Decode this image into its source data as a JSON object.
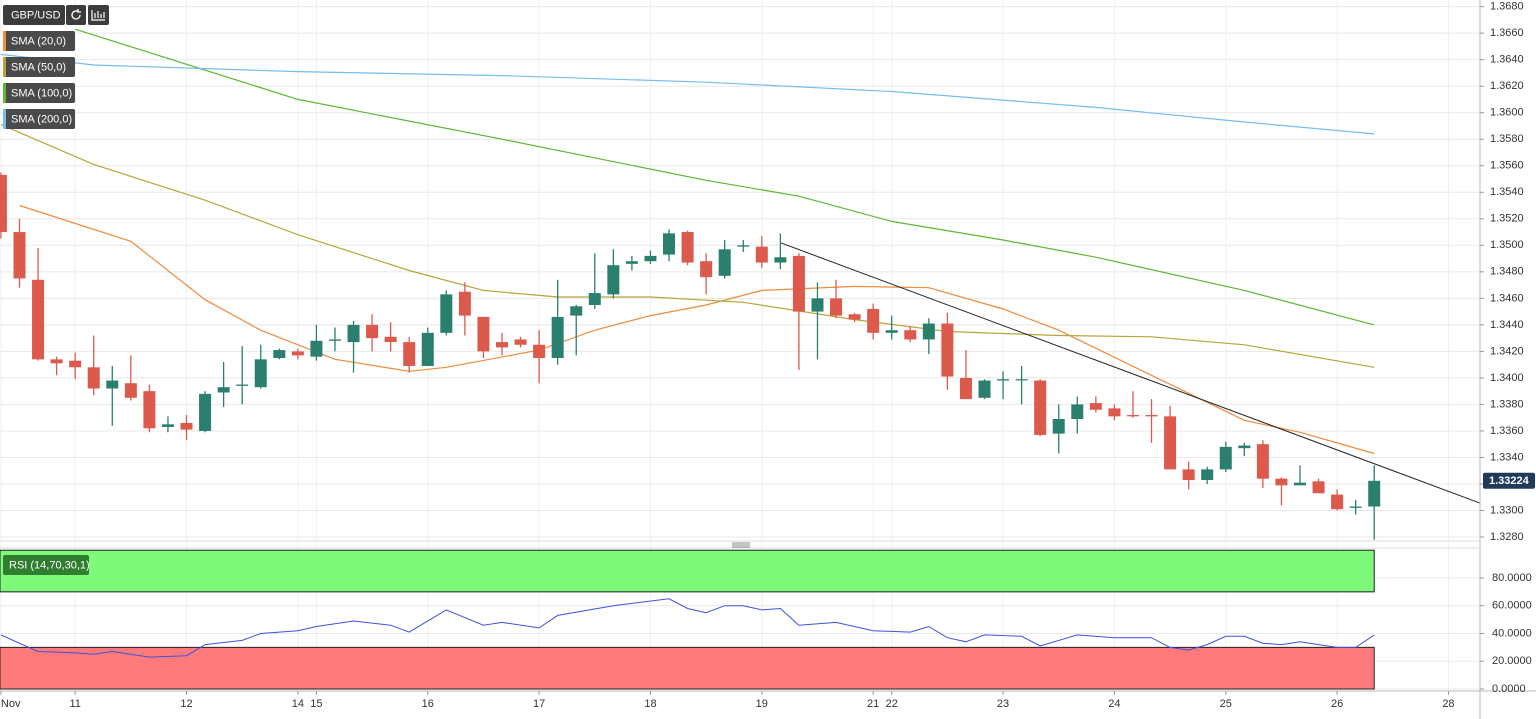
{
  "chart_data": [
    {
      "type": "candlestick",
      "title": "GBP/USD",
      "categories": [
        "Nov",
        null,
        null,
        null,
        "11",
        null,
        null,
        null,
        null,
        null,
        "12",
        null,
        null,
        null,
        null,
        null,
        "14",
        "15",
        null,
        null,
        null,
        null,
        null,
        "16",
        null,
        null,
        null,
        null,
        null,
        "17",
        null,
        null,
        null,
        null,
        null,
        "18",
        null,
        null,
        null,
        null,
        null,
        "19",
        null,
        null,
        null,
        null,
        null,
        "21",
        "22",
        null,
        null,
        null,
        null,
        null,
        "23",
        null,
        null,
        null,
        null,
        null,
        "24",
        null,
        null,
        null,
        null,
        null,
        "25",
        null,
        null,
        null,
        null,
        null,
        "26",
        null,
        null,
        null,
        null,
        null,
        "28"
      ],
      "open": [
        1.3553,
        1.351,
        1.3474,
        1.3414,
        1.3413,
        1.3408,
        1.3392,
        1.3396,
        1.339,
        1.3363,
        1.3366,
        1.336,
        1.3389,
        1.3394,
        1.3393,
        1.3415,
        1.342,
        1.3416,
        1.3428,
        1.3427,
        1.344,
        1.3431,
        1.3427,
        1.3409,
        1.3434,
        1.3465,
        1.3446,
        1.3427,
        1.3429,
        1.3425,
        1.3415,
        1.3447,
        1.3455,
        1.3463,
        1.3486,
        1.3488,
        1.3493,
        1.351,
        1.3488,
        1.3477,
        1.3499,
        1.3499,
        1.3487,
        1.3492,
        1.345,
        1.346,
        1.3448,
        1.3452,
        1.3434,
        1.3436,
        1.3429,
        1.3441,
        1.34,
        1.3385,
        1.3398,
        1.3399,
        1.3398,
        1.3358,
        1.3369,
        1.3381,
        1.3377,
        1.3372,
        1.3372,
        1.3371,
        1.3331,
        1.3323,
        1.3331,
        1.3347,
        1.335,
        1.3324,
        1.3319,
        1.3322,
        1.3312,
        1.3302,
        1.3303,
        null,
        null,
        null,
        null
      ],
      "high": [
        1.3555,
        1.352,
        1.3498,
        1.3416,
        1.3419,
        1.3432,
        1.3409,
        1.3417,
        1.3395,
        1.3371,
        1.3372,
        1.339,
        1.3412,
        1.3424,
        1.3425,
        1.3422,
        1.3422,
        1.344,
        1.3438,
        1.3443,
        1.3448,
        1.3442,
        1.3431,
        1.3438,
        1.3466,
        1.3472,
        1.3446,
        1.3434,
        1.3431,
        1.3436,
        1.3474,
        1.3455,
        1.3494,
        1.3497,
        1.3492,
        1.3496,
        1.3512,
        1.3511,
        1.3494,
        1.3504,
        1.3504,
        1.3507,
        1.3509,
        1.3494,
        1.3472,
        1.3474,
        1.3449,
        1.3456,
        1.3447,
        1.3439,
        1.3445,
        1.3449,
        1.3421,
        1.3399,
        1.3405,
        1.3409,
        1.3399,
        1.338,
        1.3386,
        1.3386,
        1.338,
        1.339,
        1.3384,
        1.3379,
        1.3337,
        1.3333,
        1.3352,
        1.3351,
        1.3353,
        1.3325,
        1.3334,
        1.3324,
        1.3316,
        1.3308,
        1.3334,
        null,
        null,
        null,
        null
      ],
      "low": [
        1.3505,
        1.3468,
        1.3413,
        1.3402,
        1.3399,
        1.3387,
        1.3364,
        1.3383,
        1.3359,
        1.3359,
        1.3353,
        1.3359,
        1.3378,
        1.338,
        1.3392,
        1.3414,
        1.3414,
        1.3413,
        1.342,
        1.3404,
        1.342,
        1.342,
        1.3404,
        1.3409,
        1.3432,
        1.3432,
        1.3415,
        1.3417,
        1.3423,
        1.3396,
        1.341,
        1.3417,
        1.3452,
        1.346,
        1.3481,
        1.3486,
        1.3488,
        1.3485,
        1.3463,
        1.3475,
        1.3495,
        1.3483,
        1.3482,
        1.3406,
        1.3414,
        1.3445,
        1.3442,
        1.3429,
        1.3429,
        1.3427,
        1.3418,
        1.3391,
        1.3384,
        1.3384,
        1.3384,
        1.338,
        1.3356,
        1.3343,
        1.3358,
        1.3374,
        1.3368,
        1.337,
        1.3351,
        1.3331,
        1.3316,
        1.332,
        1.3329,
        1.3341,
        1.3317,
        1.3304,
        1.3319,
        1.3313,
        1.33,
        1.3297,
        1.3278,
        null,
        null,
        null,
        null
      ],
      "close": [
        1.351,
        1.3475,
        1.3414,
        1.3411,
        1.3408,
        1.3392,
        1.3398,
        1.3385,
        1.3362,
        1.3365,
        1.3361,
        1.3388,
        1.3393,
        1.3395,
        1.3414,
        1.3421,
        1.3417,
        1.3428,
        1.3429,
        1.344,
        1.343,
        1.3427,
        1.3409,
        1.3434,
        1.3463,
        1.3447,
        1.342,
        1.3423,
        1.3425,
        1.3415,
        1.3446,
        1.3454,
        1.3464,
        1.3485,
        1.3488,
        1.3492,
        1.3509,
        1.3487,
        1.3476,
        1.3497,
        1.35,
        1.3487,
        1.3491,
        1.345,
        1.346,
        1.3447,
        1.3444,
        1.3434,
        1.3436,
        1.3429,
        1.3441,
        1.3401,
        1.3384,
        1.3398,
        1.3399,
        1.3399,
        1.3357,
        1.3369,
        1.338,
        1.3376,
        1.3371,
        1.3371,
        1.3371,
        1.3331,
        1.3323,
        1.3331,
        1.3348,
        1.3349,
        1.3324,
        1.3319,
        1.3321,
        1.3313,
        1.3301,
        1.3303,
        1.33224,
        null,
        null,
        null,
        null
      ],
      "up_color": "#2b7f6e",
      "down_color": "#dc5a4c",
      "overlays": [
        {
          "name": "SMA (20,0)",
          "color": "#f08a3c",
          "x": [
            1,
            7,
            11,
            14,
            18,
            22,
            24,
            29,
            32,
            35,
            38,
            41,
            46,
            50,
            54,
            57,
            62,
            67,
            70,
            74
          ],
          "values": [
            1.353,
            1.3503,
            1.3459,
            1.3436,
            1.3414,
            1.3405,
            1.3408,
            1.3421,
            1.3436,
            1.3447,
            1.3455,
            1.3466,
            1.3469,
            1.3468,
            1.3452,
            1.3436,
            1.3402,
            1.3368,
            1.3359,
            1.3343
          ]
        },
        {
          "name": "SMA (50,0)",
          "color": "#b7a53a",
          "x": [
            0,
            5,
            11,
            16,
            22,
            26,
            30,
            35,
            40,
            46,
            51,
            57,
            62,
            67,
            74
          ],
          "values": [
            1.3591,
            1.3561,
            1.3534,
            1.3508,
            1.3481,
            1.3466,
            1.3461,
            1.3461,
            1.3457,
            1.3444,
            1.3435,
            1.3432,
            1.3431,
            1.3425,
            1.3408
          ]
        },
        {
          "name": "SMA (100,0)",
          "color": "#5cb733",
          "x": [
            4,
            16,
            27,
            38,
            43,
            48,
            54,
            59,
            67,
            74
          ],
          "values": [
            1.3663,
            1.361,
            1.358,
            1.3549,
            1.3537,
            1.3518,
            1.3504,
            1.3491,
            1.3466,
            1.344
          ]
        },
        {
          "name": "SMA (200,0)",
          "color": "#74bdf0",
          "x": [
            0,
            5,
            16,
            27,
            38,
            48,
            59,
            67,
            74
          ],
          "values": [
            1.3644,
            1.3636,
            1.3631,
            1.3628,
            1.3623,
            1.3616,
            1.3604,
            1.3593,
            1.3584
          ]
        }
      ],
      "hlines": [
        1.3403,
        1.3383
      ],
      "trendline": {
        "x": [
          42,
          80
        ],
        "values": [
          1.3502,
          1.3304
        ]
      },
      "last_price": {
        "value": 1.33224,
        "label": "1.33224"
      },
      "xlim": [
        -0.05,
        79.7
      ],
      "ylim": [
        1.3277,
        1.3685
      ],
      "yticks": [
        {
          "value": 1.328,
          "label": "1.3280"
        },
        {
          "value": 1.33,
          "label": "1.3300"
        },
        {
          "value": 1.332,
          "label": "1.3320"
        },
        {
          "value": 1.334,
          "label": "1.3340"
        },
        {
          "value": 1.336,
          "label": "1.3360"
        },
        {
          "value": 1.338,
          "label": "1.3380"
        },
        {
          "value": 1.34,
          "label": "1.3400"
        },
        {
          "value": 1.342,
          "label": "1.3420"
        },
        {
          "value": 1.344,
          "label": "1.3440"
        },
        {
          "value": 1.346,
          "label": "1.3460"
        },
        {
          "value": 1.348,
          "label": "1.3480"
        },
        {
          "value": 1.35,
          "label": "1.3500"
        },
        {
          "value": 1.352,
          "label": "1.3520"
        },
        {
          "value": 1.354,
          "label": "1.3540"
        },
        {
          "value": 1.356,
          "label": "1.3560"
        },
        {
          "value": 1.358,
          "label": "1.3580"
        },
        {
          "value": 1.36,
          "label": "1.3600"
        },
        {
          "value": 1.362,
          "label": "1.3620"
        },
        {
          "value": 1.364,
          "label": "1.3640"
        },
        {
          "value": 1.366,
          "label": "1.3660"
        },
        {
          "value": 1.368,
          "label": "1.3680"
        }
      ],
      "grid": true
    },
    {
      "type": "line",
      "title": "RSI (14,70,30,1)",
      "series": [
        {
          "color": "#3d52e0",
          "x": [
            0,
            2,
            4,
            5,
            6,
            8,
            10,
            11,
            13,
            14,
            16,
            17,
            19,
            21,
            22,
            24,
            26,
            27,
            29,
            30,
            33,
            36,
            37,
            38,
            39,
            40,
            41,
            42,
            43,
            45,
            47,
            49,
            50,
            51,
            52,
            53,
            55,
            56,
            58,
            60,
            62,
            63,
            64,
            65,
            66,
            67,
            68,
            69,
            70,
            71,
            72,
            73,
            74
          ],
          "values": [
            39,
            27,
            26,
            25,
            27,
            23,
            24,
            32,
            35,
            40,
            42,
            45,
            49,
            46,
            41,
            57,
            46,
            48,
            44,
            53,
            60,
            65,
            58,
            55,
            60,
            60,
            57,
            58,
            46,
            48,
            42,
            41,
            45,
            37,
            34,
            39,
            38,
            31,
            39,
            37,
            37,
            30,
            28,
            32,
            38,
            38,
            33,
            32,
            34,
            32,
            30,
            30,
            39
          ]
        }
      ],
      "bands": [
        {
          "from": 70,
          "to": 100,
          "color": "#7efa7a"
        },
        {
          "from": 0,
          "to": 30,
          "color": "#ff7b7b"
        }
      ],
      "band_end": 74,
      "ylim": [
        0,
        101.6
      ],
      "yticks": [
        {
          "value": 0,
          "label": "0.0000"
        },
        {
          "value": 20,
          "label": "20.0000"
        },
        {
          "value": 40,
          "label": "40.0000"
        },
        {
          "value": 60,
          "label": "60.0000"
        },
        {
          "value": 80,
          "label": "80.0000"
        }
      ],
      "grid": true
    }
  ]
}
